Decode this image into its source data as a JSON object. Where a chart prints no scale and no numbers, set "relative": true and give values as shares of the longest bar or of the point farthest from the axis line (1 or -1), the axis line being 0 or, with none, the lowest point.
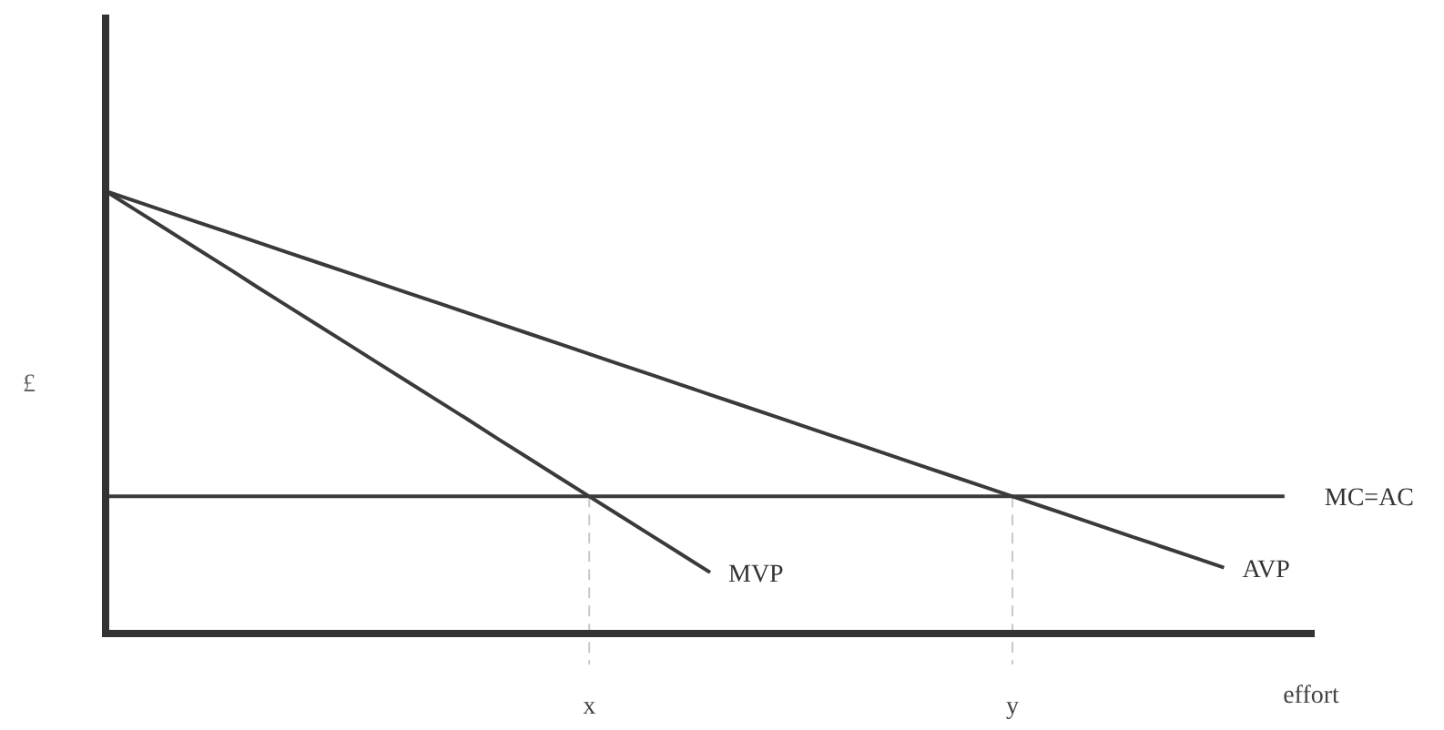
{
  "chart_data": {
    "type": "line",
    "relative": true,
    "ylabel": "£",
    "xlabel": "effort",
    "line_style": "solid",
    "marker": "none",
    "categories": [
      null,
      null,
      null,
      null,
      null,
      null,
      null,
      null,
      null,
      null,
      null,
      null,
      null,
      null,
      null,
      null,
      "x",
      null,
      null,
      null,
      null,
      null,
      null,
      null,
      null,
      null,
      null,
      null,
      null,
      null,
      "y",
      null,
      null,
      null,
      null,
      null,
      null,
      null,
      null,
      null,
      null
    ],
    "series": [
      {
        "name": "MVP",
        "color": "#3a3a3a",
        "values": [
          1,
          0.957,
          0.914,
          0.871,
          0.828,
          0.784,
          0.741,
          0.698,
          0.655,
          0.612,
          0.569,
          0.526,
          0.483,
          0.439,
          0.396,
          0.353,
          0.31,
          0.267,
          0.224,
          0.181,
          0.138,
          null,
          null,
          null,
          null,
          null,
          null,
          null,
          null,
          null,
          null,
          null,
          null,
          null,
          null,
          null,
          null,
          null,
          null,
          null,
          null
        ]
      },
      {
        "name": "AVP",
        "color": "#3a3a3a",
        "values": [
          1,
          0.977,
          0.954,
          0.931,
          0.908,
          0.885,
          0.862,
          0.839,
          0.816,
          0.793,
          0.77,
          0.747,
          0.724,
          0.701,
          0.678,
          0.655,
          0.632,
          0.609,
          0.586,
          0.563,
          0.54,
          0.517,
          0.494,
          0.471,
          0.448,
          0.425,
          0.402,
          0.379,
          0.356,
          0.333,
          0.31,
          0.287,
          0.264,
          0.241,
          0.218,
          0.195,
          0.172,
          0.149,
          null,
          null,
          null
        ]
      },
      {
        "name": "MC=AC",
        "color": "#3a3a3a",
        "values": [
          0.31,
          0.31,
          0.31,
          0.31,
          0.31,
          0.31,
          0.31,
          0.31,
          0.31,
          0.31,
          0.31,
          0.31,
          0.31,
          0.31,
          0.31,
          0.31,
          0.31,
          0.31,
          0.31,
          0.31,
          0.31,
          0.31,
          0.31,
          0.31,
          0.31,
          0.31,
          0.31,
          0.31,
          0.31,
          0.31,
          0.31,
          0.31,
          0.31,
          0.31,
          0.31,
          0.31,
          0.31,
          0.31,
          0.31,
          0.31,
          null
        ]
      }
    ],
    "ref_lines": [
      {
        "axis": "x",
        "value": "x",
        "line_style": "dashed",
        "color": "#c8c8c8"
      },
      {
        "axis": "x",
        "value": "y",
        "line_style": "dashed",
        "color": "#c8c8c8"
      }
    ]
  }
}
